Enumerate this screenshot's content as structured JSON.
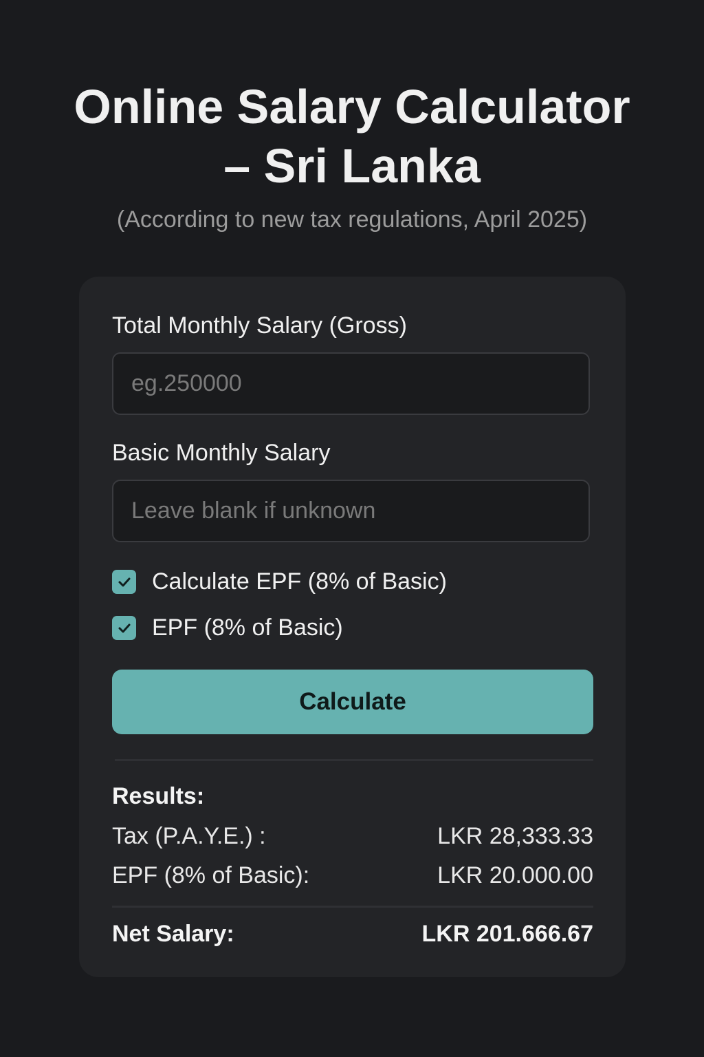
{
  "header": {
    "title_line1": "Online Salary Calculator",
    "title_line2": "– Sri Lanka",
    "subtitle": "(According to new tax regulations, April 2025)"
  },
  "form": {
    "gross_label": "Total Monthly Salary (Gross)",
    "gross_placeholder": "eg.250000",
    "gross_value": "",
    "basic_label": "Basic Monthly Salary",
    "basic_placeholder": "Leave blank if unknown",
    "basic_value": "",
    "checkboxes": [
      {
        "label": "Calculate EPF (8% of Basic)",
        "checked": true
      },
      {
        "label": "EPF (8% of Basic)",
        "checked": true
      }
    ],
    "calculate_label": "Calculate"
  },
  "results": {
    "heading": "Results:",
    "rows": [
      {
        "label": "Tax (P.A.Y.E.) :",
        "value": "LKR 28,333.33"
      },
      {
        "label": "EPF (8% of Basic):",
        "value": "LKR 20.000.00"
      }
    ],
    "net_label": "Net Salary:",
    "net_value": "LKR 201.666.67"
  },
  "colors": {
    "accent": "#66b2b0",
    "background": "#1a1b1e",
    "card": "#232427"
  }
}
